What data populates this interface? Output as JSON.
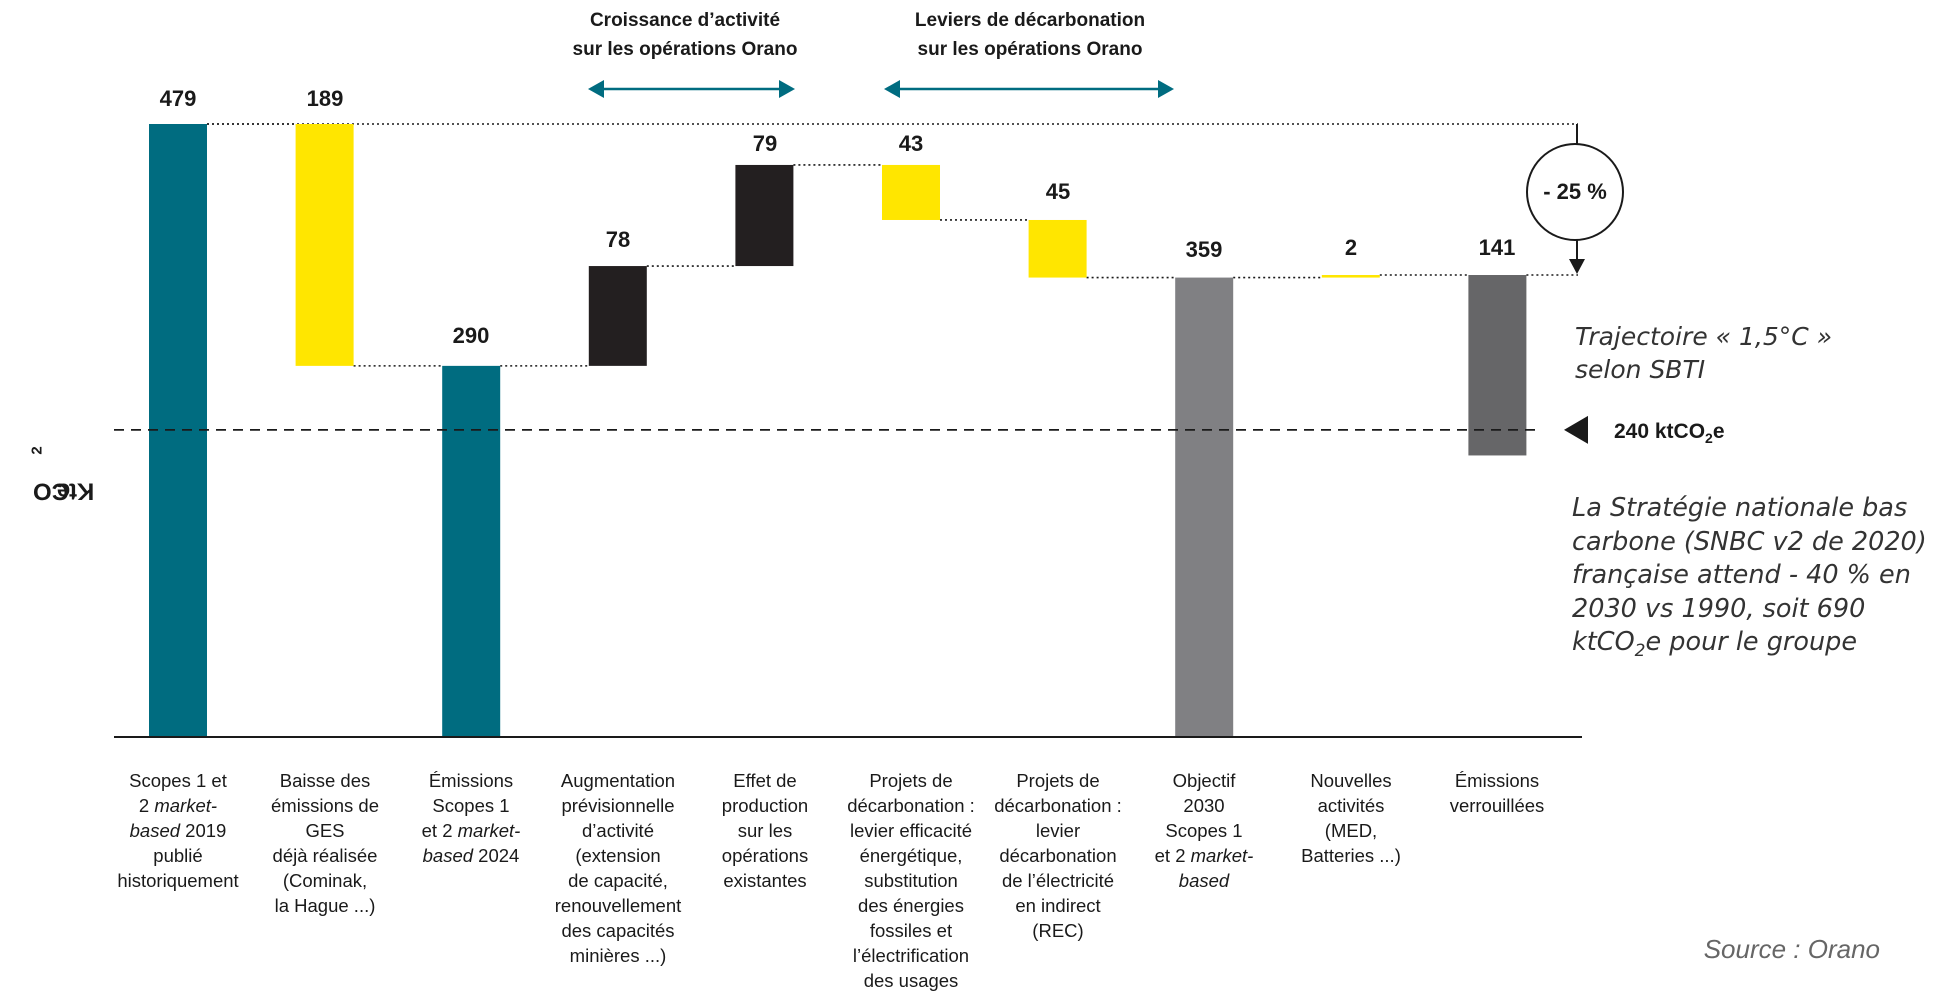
{
  "chart_data": {
    "type": "bar",
    "subtype": "waterfall",
    "ylabel": "KtCO2e",
    "ylim": [
      0,
      479
    ],
    "colors": {
      "teal": "#006c80",
      "yellow": "#ffe600",
      "black": "#231f20",
      "grey": "#808083",
      "darkgrey": "#666668"
    },
    "bars": [
      {
        "label": "Scopes 1 et 2 market-based 2019 publié historiquement",
        "value": 479,
        "base": 0,
        "top": 479,
        "color": "teal"
      },
      {
        "label": "Baisse des émissions de GES déjà réalisée (Cominak, la Hague ...)",
        "value": 189,
        "base": 290,
        "top": 479,
        "color": "yellow"
      },
      {
        "label": "Émissions Scopes 1 et 2 market-based 2024",
        "value": 290,
        "base": 0,
        "top": 290,
        "color": "teal"
      },
      {
        "label": "Augmentation prévisionnelle d’activité (extension de capacité, renouvellement des capacités minières ...)",
        "value": 78,
        "base": 290,
        "top": 368,
        "color": "black"
      },
      {
        "label": "Effet de production sur les opérations existantes",
        "value": 79,
        "base": 368,
        "top": 447,
        "color": "black"
      },
      {
        "label": "Projets de décarbonation : levier efficacité énergétique, substitution des énergies fossiles et l’électrification des usages",
        "value": 43,
        "base": 404,
        "top": 447,
        "color": "yellow"
      },
      {
        "label": "Projets de décarbonation : levier décarbonation de l’électricité en indirect (REC)",
        "value": 45,
        "base": 359,
        "top": 404,
        "color": "yellow"
      },
      {
        "label": "Objectif 2030 Scopes 1 et 2 market-based",
        "value": 359,
        "base": 0,
        "top": 359,
        "color": "grey"
      },
      {
        "label": "Nouvelles activités (MED, Batteries ...)",
        "value": 2,
        "base": 359,
        "top": 361,
        "color": "yellow"
      },
      {
        "label": "Émissions verrouillées",
        "value": 141,
        "base": 220,
        "top": 361,
        "color": "darkgrey"
      }
    ],
    "reference_line": {
      "value": 240,
      "label": "240 ktCO2e"
    },
    "reduction_label": "- 25 %"
  },
  "labels": {
    "values": [
      "479",
      "189",
      "290",
      "78",
      "79",
      "43",
      "45",
      "359",
      "2",
      "141"
    ],
    "ylabel_main": "KtCO",
    "ylabel_sub": "2",
    "ylabel_tail": "e",
    "group1_line1": "Croissance d’activité",
    "group1_line2": "sur les opérations Orano",
    "group2_line1": "Leviers de décarbonation",
    "group2_line2": "sur les opérations Orano",
    "reduction": "- 25 %",
    "trajectory_line1": "Trajectoire « 1,5°C »",
    "trajectory_line2": "selon SBTI",
    "target_main": "240 ktCO",
    "target_sub": "2",
    "target_tail": "e",
    "snbc_line1": "La Stratégie nationale bas",
    "snbc_line2": "carbone (SNBC v2 de 2020)",
    "snbc_line3": "française attend - 40 % en",
    "snbc_line4": "2030 vs 1990, soit 690",
    "snbc_line5_main": "ktCO",
    "snbc_line5_sub": "2",
    "snbc_line5_tail": "e pour le groupe",
    "source": "Source : Orano"
  },
  "categories": {
    "c0": {
      "l1": "Scopes 1 et",
      "l2a": "2 ",
      "l2b": "market-",
      "l3a": "based",
      "l3b": " 2019",
      "l4": "publié",
      "l5": "historiquement"
    },
    "c1": {
      "l1": "Baisse des",
      "l2": "émissions de GES",
      "l3": "déjà réalisée",
      "l4": "(Cominak,",
      "l5": "la Hague ...)"
    },
    "c2": {
      "l1": "Émissions",
      "l2": "Scopes 1",
      "l3a": "et 2 ",
      "l3b": "market-",
      "l4a": "based",
      "l4b": " 2024"
    },
    "c3": {
      "l1": "Augmentation",
      "l2": "prévisionnelle",
      "l3": "d’activité",
      "l4": "(extension",
      "l5": "de capacité,",
      "l6": "renouvellement",
      "l7": "des capacités",
      "l8": "minières ...)"
    },
    "c4": {
      "l1": "Effet de",
      "l2": "production",
      "l3": "sur les",
      "l4": "opérations",
      "l5": "existantes"
    },
    "c5": {
      "l1": "Projets de",
      "l2": "décarbonation :",
      "l3": "levier efficacité",
      "l4": "énergétique,",
      "l5": "substitution",
      "l6": "des énergies",
      "l7": "fossiles et",
      "l8": "l’électrification",
      "l9": "des usages"
    },
    "c6": {
      "l1": "Projets de",
      "l2": "décarbonation :",
      "l3": "levier",
      "l4": "décarbonation",
      "l5": "de l’électricité",
      "l6": "en indirect",
      "l7": "(REC)"
    },
    "c7": {
      "l1": "Objectif",
      "l2": "2030",
      "l3": "Scopes 1",
      "l4a": "et 2 ",
      "l4b": "market-",
      "l5": "based"
    },
    "c8": {
      "l1": "Nouvelles",
      "l2": "activités",
      "l3": "(MED,",
      "l4": "Batteries ...)"
    },
    "c9": {
      "l1": "Émissions",
      "l2": "verrouillées"
    }
  }
}
